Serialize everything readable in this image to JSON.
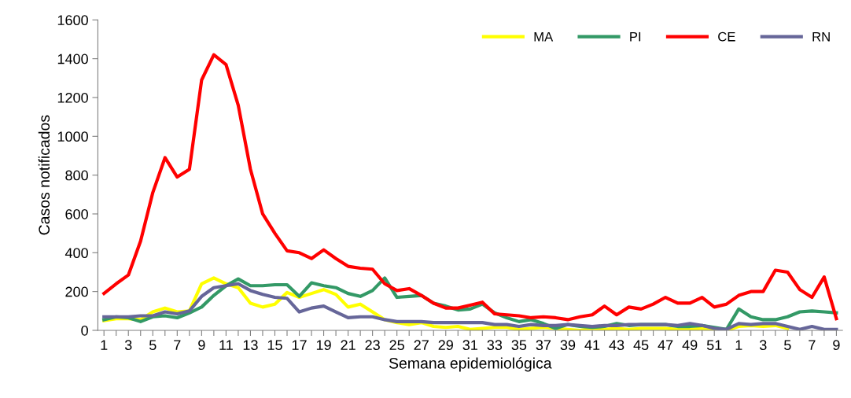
{
  "chart_data": {
    "type": "line",
    "xlabel": "Semana epidemiológica",
    "ylabel": "Casos notificados",
    "categories": [
      "1",
      null,
      "3",
      null,
      "5",
      null,
      "7",
      null,
      "9",
      null,
      "11",
      null,
      "13",
      null,
      "15",
      null,
      "17",
      null,
      "19",
      null,
      "21",
      null,
      "23",
      null,
      "25",
      null,
      "27",
      null,
      "29",
      null,
      "31",
      null,
      "33",
      null,
      "35",
      null,
      "37",
      null,
      "39",
      null,
      "41",
      null,
      "43",
      null,
      "45",
      null,
      "47",
      null,
      "49",
      null,
      "51",
      null,
      "1",
      null,
      "3",
      null,
      "5",
      null,
      "7",
      null,
      "9"
    ],
    "series": [
      {
        "name": "MA",
        "color": "#ffff00",
        "values": [
          50,
          60,
          60,
          55,
          95,
          115,
          95,
          100,
          240,
          270,
          240,
          220,
          140,
          120,
          135,
          195,
          170,
          190,
          210,
          185,
          120,
          135,
          95,
          55,
          40,
          30,
          40,
          20,
          15,
          20,
          5,
          10,
          15,
          15,
          5,
          10,
          15,
          10,
          5,
          0,
          10,
          5,
          10,
          5,
          10,
          10,
          10,
          5,
          5,
          10,
          0,
          0,
          20,
          25,
          20,
          25,
          10,
          null,
          null,
          null,
          null
        ]
      },
      {
        "name": "PI",
        "color": "#339966",
        "values": [
          55,
          70,
          65,
          45,
          70,
          75,
          65,
          90,
          120,
          180,
          230,
          265,
          230,
          230,
          235,
          235,
          175,
          245,
          230,
          220,
          190,
          175,
          205,
          270,
          170,
          175,
          180,
          140,
          125,
          105,
          110,
          135,
          90,
          65,
          45,
          55,
          35,
          10,
          30,
          20,
          15,
          20,
          35,
          25,
          30,
          30,
          30,
          20,
          20,
          25,
          15,
          5,
          110,
          70,
          55,
          55,
          70,
          95,
          100,
          95,
          90
        ]
      },
      {
        "name": "CE",
        "color": "#ff0000",
        "values": [
          190,
          240,
          285,
          460,
          710,
          890,
          790,
          830,
          1290,
          1420,
          1370,
          1160,
          830,
          600,
          500,
          410,
          400,
          370,
          415,
          370,
          330,
          320,
          315,
          240,
          205,
          215,
          180,
          140,
          115,
          115,
          130,
          145,
          85,
          80,
          75,
          65,
          70,
          65,
          55,
          70,
          80,
          125,
          80,
          120,
          110,
          135,
          170,
          140,
          140,
          170,
          120,
          135,
          180,
          200,
          200,
          310,
          300,
          210,
          170,
          275,
          60
        ]
      },
      {
        "name": "RN",
        "color": "#666699",
        "values": [
          70,
          70,
          70,
          75,
          75,
          95,
          85,
          100,
          175,
          220,
          230,
          240,
          205,
          185,
          170,
          165,
          95,
          115,
          125,
          95,
          65,
          70,
          70,
          55,
          45,
          45,
          45,
          40,
          40,
          40,
          40,
          40,
          30,
          30,
          20,
          30,
          25,
          25,
          30,
          25,
          20,
          25,
          25,
          30,
          30,
          30,
          30,
          25,
          35,
          25,
          10,
          5,
          35,
          30,
          35,
          35,
          20,
          5,
          20,
          5,
          5
        ]
      }
    ],
    "ylim": [
      0,
      1600
    ],
    "yticks": [
      0,
      200,
      400,
      600,
      800,
      1000,
      1200,
      1400,
      1600
    ],
    "legend": "top right",
    "grid": false,
    "marker": "none",
    "line_style": "solid"
  }
}
